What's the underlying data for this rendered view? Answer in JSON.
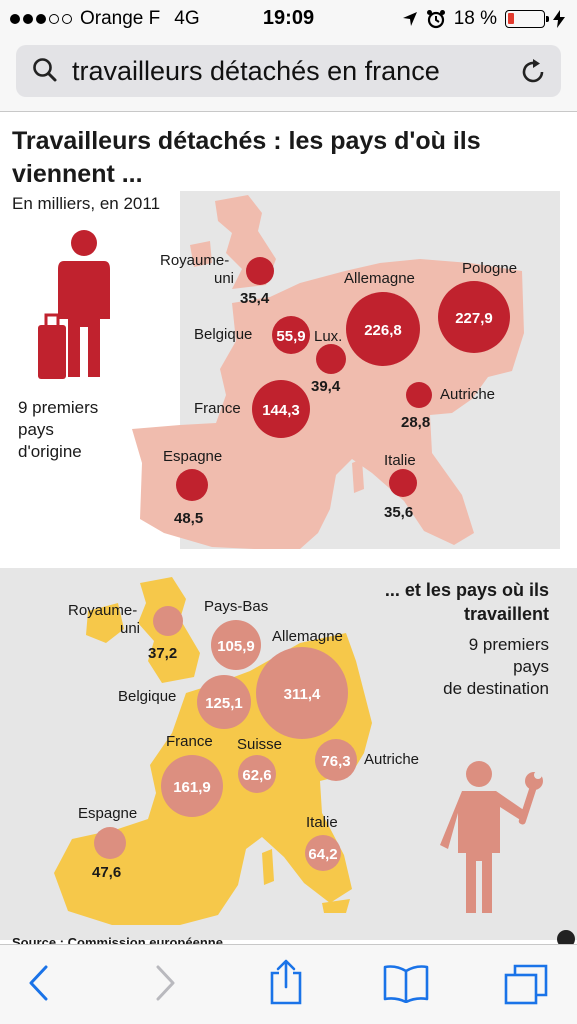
{
  "status_bar": {
    "carrier": "Orange F",
    "network": "4G",
    "time": "19:09",
    "battery_percent": "18 %",
    "battery_level": 0.18,
    "icons": [
      "signal-dots",
      "location-arrow-icon",
      "alarm-clock-icon",
      "battery-icon",
      "charging-bolt-icon"
    ]
  },
  "url_bar": {
    "search_text": "travailleurs détachés en france",
    "icons": [
      "search-icon",
      "reload-icon"
    ]
  },
  "infographic": {
    "title_line1": "Travailleurs détachés : les pays d'où ils",
    "title_line2": "viennent ...",
    "subtitle": "En milliers, en 2011",
    "origin_caption_1": "9 premiers",
    "origin_caption_2": "pays",
    "origin_caption_3": "d'origine",
    "origin": [
      {
        "country": "Royaume-",
        "country2": "uni",
        "value": "35,4"
      },
      {
        "country": "Allemagne",
        "value": "226,8"
      },
      {
        "country": "Pologne",
        "value": "227,9"
      },
      {
        "country": "Belgique",
        "value": "55,9"
      },
      {
        "country": "Lux.",
        "value": "39,4"
      },
      {
        "country": "France",
        "value": "144,3"
      },
      {
        "country": "Autriche",
        "value": "28,8"
      },
      {
        "country": "Espagne",
        "value": "48,5"
      },
      {
        "country": "Italie",
        "value": "35,6"
      }
    ],
    "dest_heading_1": "... et les pays où ils",
    "dest_heading_2": "travaillent",
    "dest_caption_1": "9 premiers",
    "dest_caption_2": "pays",
    "dest_caption_3": "de destination",
    "destination": [
      {
        "country": "Royaume-",
        "country2": "uni",
        "value": "37,2"
      },
      {
        "country": "Pays-Bas",
        "value": "105,9"
      },
      {
        "country": "Allemagne",
        "value": "311,4"
      },
      {
        "country": "Belgique",
        "value": "125,1"
      },
      {
        "country": "France",
        "value": "161,9"
      },
      {
        "country": "Suisse",
        "value": "62,6"
      },
      {
        "country": "Autriche",
        "value": "76,3"
      },
      {
        "country": "Espagne",
        "value": "47,6"
      },
      {
        "country": "Italie",
        "value": "64,2"
      }
    ],
    "source": "Source : Commission européenne",
    "colors": {
      "origin_map": "#f0bcae",
      "origin_bubble": "#c0222e",
      "dest_map": "#f6c84a",
      "dest_bubble": "#dc8f80",
      "figure_red": "#c0222e",
      "figure_salmon": "#dc8f80",
      "background_map": "#e6e6e6"
    }
  },
  "toolbar": {
    "icons": [
      "back-icon",
      "forward-icon",
      "share-icon",
      "bookmarks-icon",
      "tabs-icon"
    ]
  }
}
